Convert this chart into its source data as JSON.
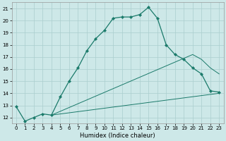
{
  "xlabel": "Humidex (Indice chaleur)",
  "bg_color": "#cde8e8",
  "grid_color": "#aacece",
  "line_color": "#1a7a6a",
  "xlim": [
    -0.5,
    23.5
  ],
  "ylim": [
    11.5,
    21.5
  ],
  "xticks": [
    0,
    1,
    2,
    3,
    4,
    5,
    6,
    7,
    8,
    9,
    10,
    11,
    12,
    13,
    14,
    15,
    16,
    17,
    18,
    19,
    20,
    21,
    22,
    23
  ],
  "yticks": [
    12,
    13,
    14,
    15,
    16,
    17,
    18,
    19,
    20,
    21
  ],
  "line1_x": [
    0,
    1,
    2,
    3,
    4,
    5,
    6,
    7,
    8,
    9,
    10,
    11,
    12,
    13,
    14,
    15,
    16,
    17,
    18,
    19,
    20,
    21,
    22,
    23
  ],
  "line1_y": [
    12.9,
    11.7,
    12.0,
    12.3,
    12.2,
    13.7,
    15.0,
    16.1,
    17.5,
    18.5,
    19.2,
    20.2,
    20.3,
    20.3,
    20.5,
    21.1,
    20.2,
    18.0,
    17.2,
    16.8,
    16.1,
    15.6,
    14.2,
    14.1
  ],
  "line2_x": [
    4,
    23
  ],
  "line2_y": [
    12.2,
    14.0
  ],
  "line3_x": [
    4,
    20,
    21,
    22,
    23
  ],
  "line3_y": [
    12.2,
    17.2,
    16.8,
    16.1,
    15.6
  ]
}
